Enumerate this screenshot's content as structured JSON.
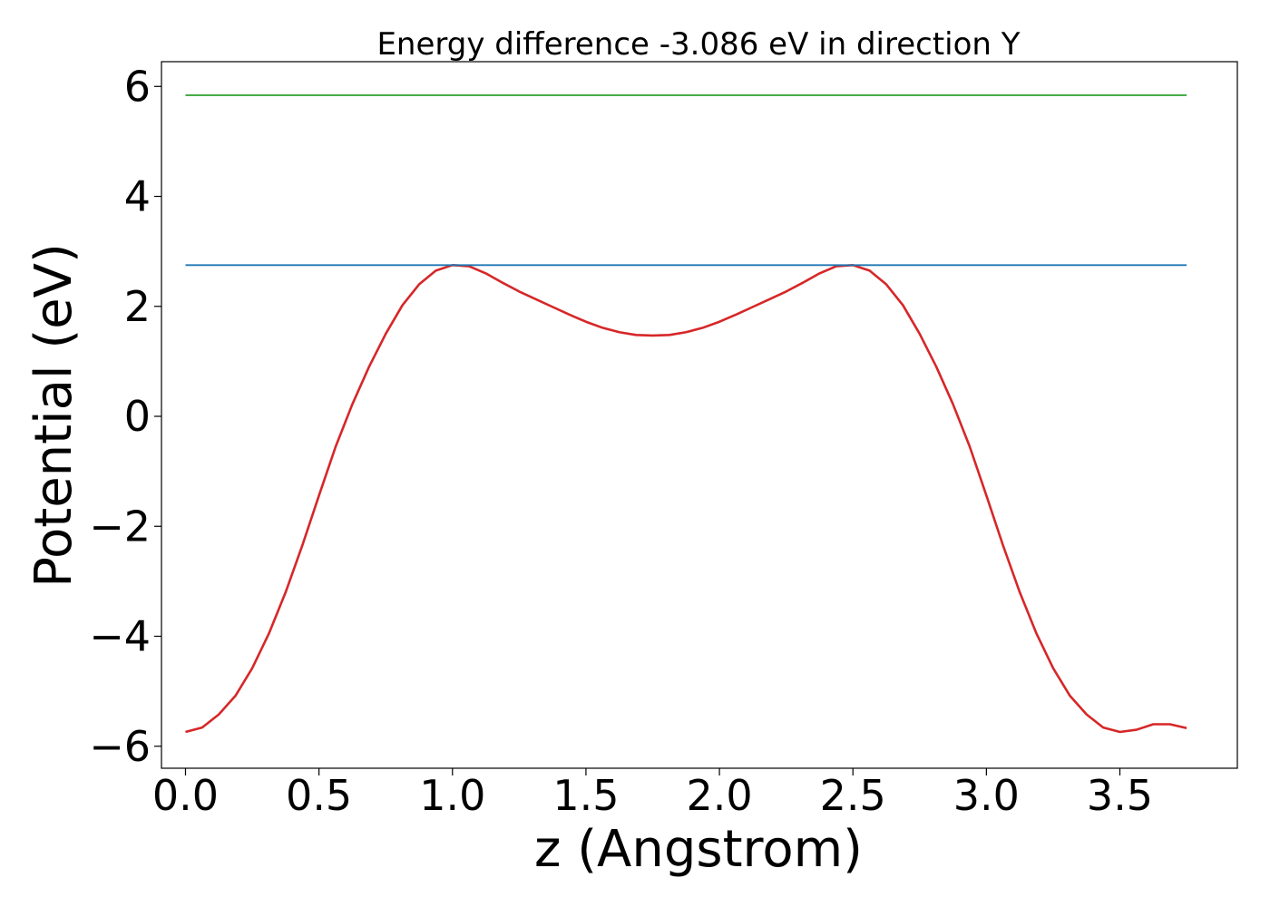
{
  "chart_data": {
    "type": "line",
    "title": "Energy difference -3.086 eV in direction Y",
    "xlabel": "z (Angstrom)",
    "ylabel": "Potential (eV)",
    "xlim": [
      -0.09,
      3.94
    ],
    "ylim": [
      -6.4,
      6.45
    ],
    "xticks": [
      0.0,
      0.5,
      1.0,
      1.5,
      2.0,
      2.5,
      3.0,
      3.5
    ],
    "xtick_labels": [
      "0.0",
      "0.5",
      "1.0",
      "1.5",
      "2.0",
      "2.5",
      "3.0",
      "3.5"
    ],
    "yticks": [
      6,
      4,
      2,
      0,
      -2,
      -4,
      -6
    ],
    "ytick_labels": [
      "6",
      "4",
      "2",
      "0",
      "−2",
      "−4",
      "−6"
    ],
    "grid": false,
    "series": [
      {
        "color": "#d62728",
        "x": [
          0.0,
          0.0625,
          0.125,
          0.1875,
          0.25,
          0.3125,
          0.375,
          0.4375,
          0.5,
          0.5625,
          0.625,
          0.6875,
          0.75,
          0.8125,
          0.875,
          0.9375,
          1.0,
          1.0625,
          1.125,
          1.1875,
          1.25,
          1.3125,
          1.375,
          1.4375,
          1.5,
          1.5625,
          1.625,
          1.6875,
          1.75,
          1.8125,
          1.875,
          1.9375,
          2.0,
          2.0625,
          2.125,
          2.1875,
          2.25,
          2.3125,
          2.375,
          2.4375,
          2.5,
          2.5625,
          2.625,
          2.6875,
          2.75,
          2.8125,
          2.875,
          2.9375,
          3.0,
          3.0625,
          3.125,
          3.1875,
          3.25,
          3.3125,
          3.375,
          3.4375,
          3.5,
          3.5625,
          3.625,
          3.6875,
          3.75
        ],
        "y": [
          -5.74,
          -5.66,
          -5.42,
          -5.08,
          -4.58,
          -3.95,
          -3.2,
          -2.35,
          -1.44,
          -0.55,
          0.22,
          0.9,
          1.5,
          2.02,
          2.4,
          2.65,
          2.75,
          2.73,
          2.6,
          2.43,
          2.27,
          2.13,
          1.99,
          1.85,
          1.72,
          1.61,
          1.53,
          1.48,
          1.47,
          1.48,
          1.53,
          1.61,
          1.72,
          1.85,
          1.99,
          2.13,
          2.27,
          2.43,
          2.6,
          2.73,
          2.75,
          2.65,
          2.4,
          2.02,
          1.5,
          0.9,
          0.22,
          -0.55,
          -1.44,
          -2.35,
          -3.2,
          -3.95,
          -4.58,
          -5.08,
          -5.42,
          -5.66,
          -5.74,
          -5.7,
          -5.6,
          -5.6,
          -5.67
        ]
      },
      {
        "color": "#1f77b4",
        "x": [
          0.0,
          3.75
        ],
        "y": [
          2.75,
          2.75
        ]
      },
      {
        "color": "#2ca02c",
        "x": [
          0.0,
          3.75
        ],
        "y": [
          5.84,
          5.84
        ]
      }
    ]
  }
}
